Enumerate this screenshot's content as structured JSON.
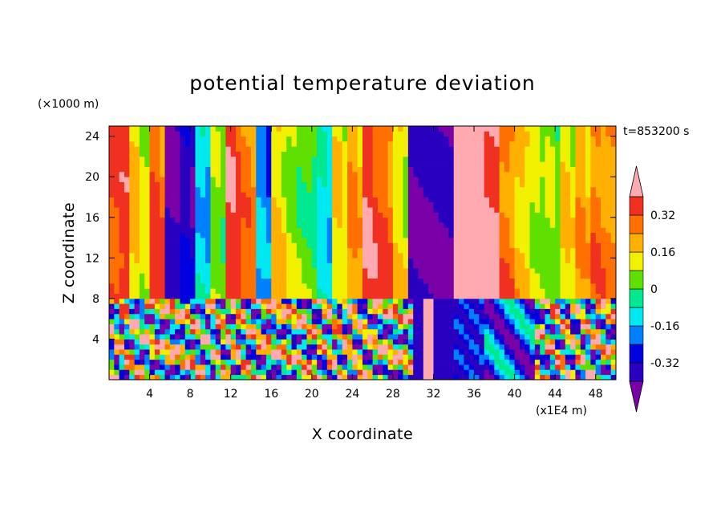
{
  "chart_data": {
    "type": "heatmap",
    "title": "potential temperature deviation",
    "xlabel": "X coordinate",
    "ylabel": "Z coordinate",
    "x_unit": "(x1E4 m)",
    "y_unit": "(×1000 m)",
    "time_label": "t=853200 s",
    "xlim": [
      0,
      50
    ],
    "ylim": [
      0,
      25
    ],
    "x_ticks": [
      4,
      8,
      12,
      16,
      20,
      24,
      28,
      32,
      36,
      40,
      44,
      48
    ],
    "y_ticks": [
      4,
      8,
      12,
      16,
      20,
      24
    ],
    "colorbar": {
      "levels": [
        -0.4,
        -0.32,
        -0.24,
        -0.16,
        -0.08,
        0,
        0.08,
        0.16,
        0.24,
        0.32,
        0.4
      ],
      "colors": [
        "#7a00a8",
        "#2a00c0",
        "#0000e0",
        "#0080ff",
        "#00e8f0",
        "#00e890",
        "#60e000",
        "#f0f000",
        "#ffb000",
        "#ff7000",
        "#f03020",
        "#ffaab0"
      ],
      "tick_labels": [
        "-0.32",
        "-0.16",
        "0",
        "0.16",
        "0.32"
      ],
      "tick_values": [
        -0.32,
        -0.16,
        0,
        0.16,
        0.32
      ]
    },
    "grid": false,
    "legend_placement": "right"
  }
}
